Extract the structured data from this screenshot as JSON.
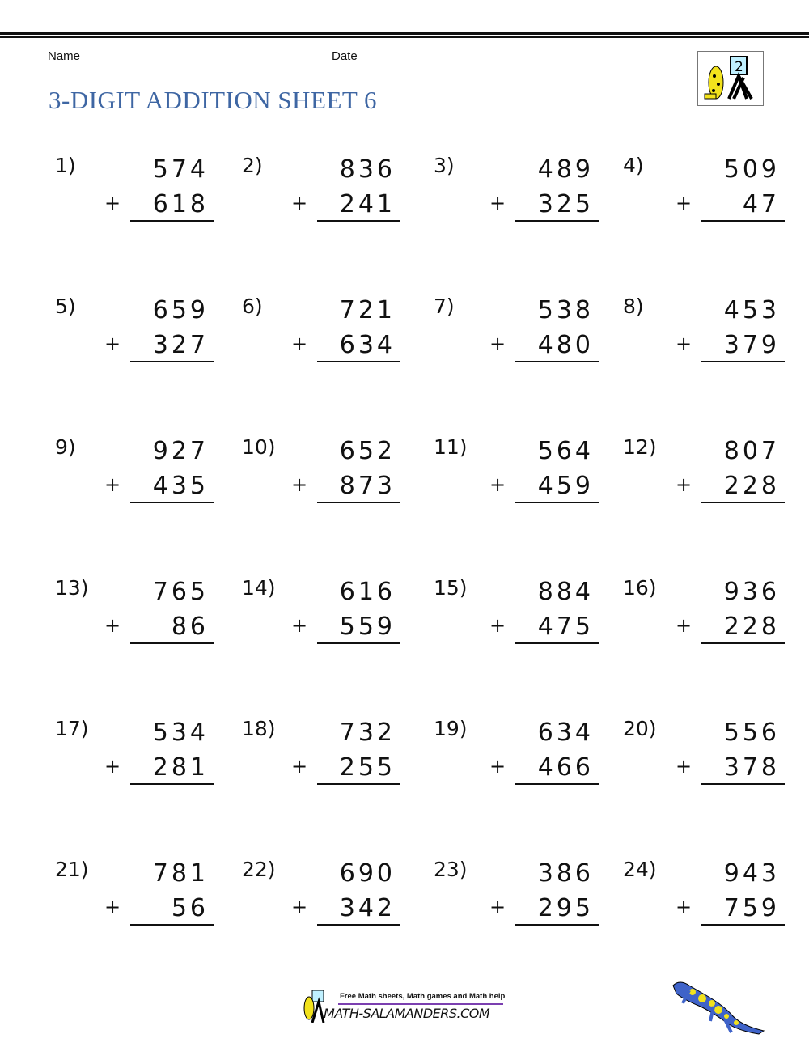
{
  "header": {
    "name_label": "Name",
    "date_label": "Date",
    "title": "3-DIGIT ADDITION SHEET 6",
    "logo_digit": "2"
  },
  "operator": "+",
  "problems": [
    {
      "label": "1)",
      "a": "574",
      "b": "618"
    },
    {
      "label": "2)",
      "a": "836",
      "b": "241"
    },
    {
      "label": "3)",
      "a": "489",
      "b": "325"
    },
    {
      "label": "4)",
      "a": "509",
      "b": "47"
    },
    {
      "label": "5)",
      "a": "659",
      "b": "327"
    },
    {
      "label": "6)",
      "a": "721",
      "b": "634"
    },
    {
      "label": "7)",
      "a": "538",
      "b": "480"
    },
    {
      "label": "8)",
      "a": "453",
      "b": "379"
    },
    {
      "label": "9)",
      "a": "927",
      "b": "435"
    },
    {
      "label": "10)",
      "a": "652",
      "b": "873"
    },
    {
      "label": "11)",
      "a": "564",
      "b": "459"
    },
    {
      "label": "12)",
      "a": "807",
      "b": "228"
    },
    {
      "label": "13)",
      "a": "765",
      "b": "86"
    },
    {
      "label": "14)",
      "a": "616",
      "b": "559"
    },
    {
      "label": "15)",
      "a": "884",
      "b": "475"
    },
    {
      "label": "16)",
      "a": "936",
      "b": "228"
    },
    {
      "label": "17)",
      "a": "534",
      "b": "281"
    },
    {
      "label": "18)",
      "a": "732",
      "b": "255"
    },
    {
      "label": "19)",
      "a": "634",
      "b": "466"
    },
    {
      "label": "20)",
      "a": "556",
      "b": "378"
    },
    {
      "label": "21)",
      "a": "781",
      "b": "56"
    },
    {
      "label": "22)",
      "a": "690",
      "b": "342"
    },
    {
      "label": "23)",
      "a": "386",
      "b": "295"
    },
    {
      "label": "24)",
      "a": "943",
      "b": "759"
    }
  ],
  "footer": {
    "tagline": "Free Math sheets, Math games and Math help",
    "site": "MATH-SALAMANDERS.COM"
  },
  "colors": {
    "title": "#3e66a3",
    "footer_bar": "#7b3fb0",
    "salamander": "#3f63c9",
    "spots": "#f2e21c"
  }
}
